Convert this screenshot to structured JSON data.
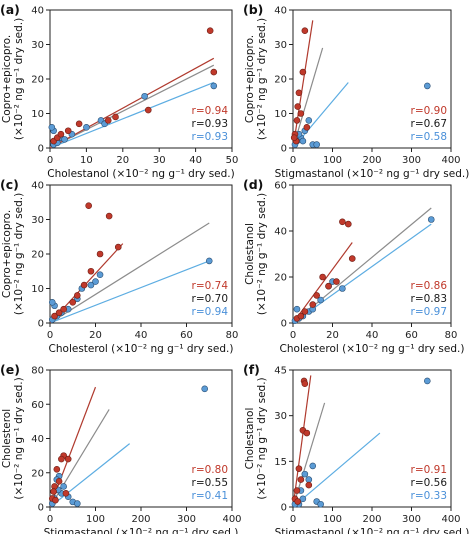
{
  "colors": {
    "red": "#c0392b",
    "black": "#1a1a1a",
    "blue": "#4a90d9",
    "red_fit": "#b03a2e",
    "gray_fit": "#8c8c8c",
    "blue_fit": "#5dade2",
    "red_marker": "#c0392b",
    "blue_marker": "#5b9bd5"
  },
  "chart_data": [
    {
      "type": "scatter",
      "panel": "(a)",
      "xlabel": "Cholestanol (×10⁻² ng g⁻¹ dry sed.)",
      "ylabel_line1": "Copro+epicopro.",
      "ylabel_line2": "(×10⁻² ng g⁻¹ dry sed.)",
      "xlim": [
        0,
        50
      ],
      "ylim": [
        0,
        40
      ],
      "xticks": [
        "0",
        "10",
        "20",
        "30",
        "40",
        "50"
      ],
      "yticks": [
        "0",
        "10",
        "20",
        "30",
        "40"
      ],
      "red_points": [
        [
          1,
          2
        ],
        [
          2,
          3
        ],
        [
          3,
          4
        ],
        [
          5,
          5
        ],
        [
          8,
          7
        ],
        [
          16,
          8
        ],
        [
          18,
          9
        ],
        [
          27,
          11
        ],
        [
          44,
          34
        ],
        [
          45,
          22
        ]
      ],
      "blue_points": [
        [
          1,
          1
        ],
        [
          2,
          2
        ],
        [
          3,
          3
        ],
        [
          6,
          4
        ],
        [
          10,
          6
        ],
        [
          14,
          8
        ],
        [
          15,
          7
        ],
        [
          26,
          15
        ],
        [
          45,
          18
        ],
        [
          1,
          5
        ],
        [
          0.5,
          6
        ],
        [
          2,
          1.5
        ],
        [
          4,
          2.5
        ]
      ],
      "fits": {
        "red": [
          [
            0,
            0
          ],
          [
            45,
            26
          ]
        ],
        "gray": [
          [
            0,
            0
          ],
          [
            45,
            24
          ]
        ],
        "blue": [
          [
            0,
            0
          ],
          [
            45,
            19
          ]
        ]
      },
      "r_values": [
        "r=0.94",
        "r=0.93",
        "r=0.93"
      ]
    },
    {
      "type": "scatter",
      "panel": "(b)",
      "xlabel": "Stigmastanol (×10⁻² ng g⁻¹ dry sed.)",
      "ylabel_line1": "Copro+epicopro.",
      "ylabel_line2": "(×10⁻² ng g⁻¹ dry sed.)",
      "xlim": [
        0,
        400
      ],
      "ylim": [
        0,
        40
      ],
      "xticks": [
        "0",
        "100",
        "200",
        "300",
        "400"
      ],
      "yticks": [
        "0",
        "10",
        "20",
        "30",
        "40"
      ],
      "red_points": [
        [
          30,
          34
        ],
        [
          25,
          22
        ],
        [
          15,
          16
        ],
        [
          10,
          8
        ],
        [
          5,
          4
        ],
        [
          20,
          10
        ],
        [
          35,
          6
        ],
        [
          8,
          2
        ],
        [
          12,
          12
        ],
        [
          3,
          3
        ]
      ],
      "blue_points": [
        [
          340,
          18
        ],
        [
          40,
          8
        ],
        [
          30,
          5
        ],
        [
          20,
          3
        ],
        [
          10,
          2
        ],
        [
          50,
          1
        ],
        [
          60,
          1
        ],
        [
          5,
          1
        ],
        [
          15,
          4
        ],
        [
          25,
          2
        ]
      ],
      "fits": {
        "red": [
          [
            0,
            0
          ],
          [
            50,
            37
          ]
        ],
        "gray": [
          [
            0,
            0
          ],
          [
            75,
            29
          ]
        ],
        "blue": [
          [
            0,
            0
          ],
          [
            140,
            19
          ]
        ]
      },
      "r_values": [
        "r=0.90",
        "r=0.67",
        "r=0.58"
      ]
    },
    {
      "type": "scatter",
      "panel": "(c)",
      "xlabel": "Cholesterol (×10⁻² ng g⁻¹ dry sed.)",
      "ylabel_line1": "Copro+epicopro.",
      "ylabel_line2": "(×10⁻² ng g⁻¹ dry sed.)",
      "xlim": [
        0,
        80
      ],
      "ylim": [
        0,
        40
      ],
      "xticks": [
        "0",
        "20",
        "40",
        "60",
        "80"
      ],
      "yticks": [
        "0",
        "10",
        "20",
        "30",
        "40"
      ],
      "red_points": [
        [
          2,
          2
        ],
        [
          4,
          3
        ],
        [
          6,
          4
        ],
        [
          10,
          6
        ],
        [
          12,
          8
        ],
        [
          15,
          11
        ],
        [
          18,
          15
        ],
        [
          17,
          34
        ],
        [
          22,
          20
        ],
        [
          30,
          22
        ],
        [
          26,
          31
        ]
      ],
      "blue_points": [
        [
          1,
          1
        ],
        [
          3,
          2
        ],
        [
          5,
          3
        ],
        [
          8,
          4
        ],
        [
          12,
          7
        ],
        [
          14,
          10
        ],
        [
          18,
          11
        ],
        [
          20,
          12
        ],
        [
          22,
          14
        ],
        [
          70,
          18
        ],
        [
          2,
          5
        ],
        [
          1,
          6
        ]
      ],
      "fits": {
        "red": [
          [
            0,
            0
          ],
          [
            32,
            23
          ]
        ],
        "gray": [
          [
            0,
            0
          ],
          [
            70,
            29
          ]
        ],
        "blue": [
          [
            0,
            0
          ],
          [
            70,
            18
          ]
        ]
      },
      "r_values": [
        "r=0.74",
        "r=0.70",
        "r=0.94"
      ]
    },
    {
      "type": "scatter",
      "panel": "(d)",
      "xlabel": "Cholesterol (×10⁻² ng g⁻¹ dry sed.)",
      "ylabel_line1": "Cholestanol",
      "ylabel_line2": "(×10⁻² ng g⁻¹ dry sed.)",
      "xlim": [
        0,
        80
      ],
      "ylim": [
        0,
        60
      ],
      "xticks": [
        "0",
        "20",
        "40",
        "60",
        "80"
      ],
      "yticks": [
        "0",
        "20",
        "40",
        "60"
      ],
      "red_points": [
        [
          2,
          2
        ],
        [
          4,
          3
        ],
        [
          6,
          5
        ],
        [
          10,
          8
        ],
        [
          12,
          12
        ],
        [
          15,
          20
        ],
        [
          18,
          16
        ],
        [
          25,
          44
        ],
        [
          28,
          43
        ],
        [
          30,
          28
        ],
        [
          22,
          18
        ]
      ],
      "blue_points": [
        [
          1,
          1
        ],
        [
          3,
          2
        ],
        [
          5,
          3
        ],
        [
          8,
          5
        ],
        [
          10,
          6
        ],
        [
          14,
          10
        ],
        [
          18,
          16
        ],
        [
          20,
          18
        ],
        [
          25,
          15
        ],
        [
          70,
          45
        ],
        [
          2,
          6
        ]
      ],
      "fits": {
        "red": [
          [
            0,
            0
          ],
          [
            30,
            35
          ]
        ],
        "gray": [
          [
            0,
            0
          ],
          [
            70,
            50
          ]
        ],
        "blue": [
          [
            0,
            0
          ],
          [
            70,
            43
          ]
        ]
      },
      "r_values": [
        "r=0.86",
        "r=0.83",
        "r=0.97"
      ]
    },
    {
      "type": "scatter",
      "panel": "(e)",
      "xlabel": "Stigmastanol (×10⁻² ng g⁻¹ dry sed.)",
      "ylabel_line1": "Cholesterol",
      "ylabel_line2": "(×10⁻² ng g⁻¹ dry sed.)",
      "xlim": [
        0,
        400
      ],
      "ylim": [
        0,
        80
      ],
      "xticks": [
        "0",
        "100",
        "200",
        "300",
        "400"
      ],
      "yticks": [
        "0",
        "20",
        "40",
        "60",
        "80"
      ],
      "red_points": [
        [
          30,
          30
        ],
        [
          25,
          28
        ],
        [
          40,
          28
        ],
        [
          15,
          22
        ],
        [
          10,
          12
        ],
        [
          20,
          15
        ],
        [
          5,
          5
        ],
        [
          35,
          8
        ],
        [
          12,
          4
        ],
        [
          8,
          9
        ]
      ],
      "blue_points": [
        [
          340,
          69
        ],
        [
          20,
          18
        ],
        [
          15,
          16
        ],
        [
          30,
          12
        ],
        [
          25,
          8
        ],
        [
          10,
          5
        ],
        [
          40,
          6
        ],
        [
          50,
          3
        ],
        [
          60,
          2
        ],
        [
          5,
          2
        ],
        [
          18,
          10
        ]
      ],
      "fits": {
        "red": [
          [
            0,
            0
          ],
          [
            100,
            70
          ]
        ],
        "gray": [
          [
            0,
            0
          ],
          [
            130,
            57
          ]
        ],
        "blue": [
          [
            0,
            0
          ],
          [
            175,
            37
          ]
        ]
      },
      "r_values": [
        "r=0.80",
        "r=0.55",
        "r=0.41"
      ]
    },
    {
      "type": "scatter",
      "panel": "(f)",
      "xlabel": "Stigmastanol (×10⁻² ng g⁻¹ dry sed.)",
      "ylabel_line1": "Cholestanol",
      "ylabel_line2": "(×10⁻² ng g⁻¹ dry sed.)",
      "xlim": [
        0,
        400
      ],
      "ylim": [
        0,
        50
      ],
      "xticks": [
        "0",
        "100",
        "200",
        "300",
        "400"
      ],
      "yticks": [
        "0",
        "15",
        "30",
        "45"
      ],
      "red_points": [
        [
          28,
          46
        ],
        [
          30,
          45
        ],
        [
          25,
          28
        ],
        [
          35,
          27
        ],
        [
          15,
          14
        ],
        [
          20,
          10
        ],
        [
          10,
          6
        ],
        [
          40,
          8
        ],
        [
          5,
          3
        ],
        [
          12,
          2
        ]
      ],
      "blue_points": [
        [
          340,
          46
        ],
        [
          50,
          15
        ],
        [
          30,
          12
        ],
        [
          40,
          10
        ],
        [
          20,
          6
        ],
        [
          25,
          3
        ],
        [
          60,
          2
        ],
        [
          70,
          1
        ],
        [
          10,
          2
        ],
        [
          15,
          1
        ],
        [
          5,
          1
        ]
      ],
      "fits": {
        "red": [
          [
            0,
            0
          ],
          [
            45,
            48
          ]
        ],
        "gray": [
          [
            0,
            0
          ],
          [
            80,
            38
          ]
        ],
        "blue": [
          [
            0,
            0
          ],
          [
            220,
            27
          ]
        ]
      },
      "r_values": [
        "r=0.91",
        "r=0.56",
        "r=0.33"
      ]
    }
  ]
}
